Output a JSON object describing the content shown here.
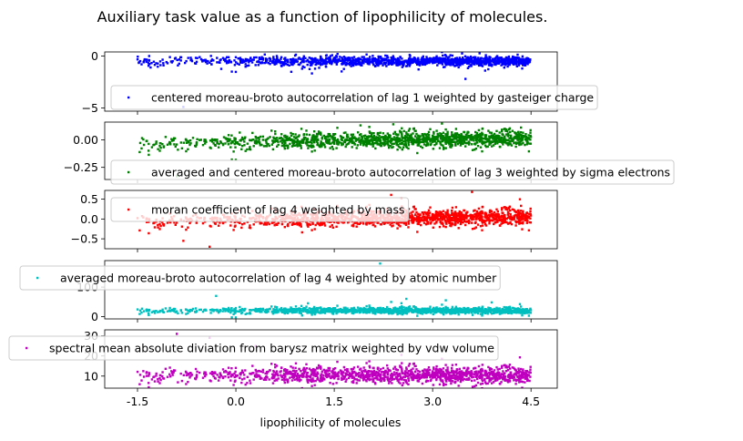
{
  "chart_data": {
    "type": "scatter",
    "title": "Auxiliary task value as a function of lipophilicity of molecules.",
    "xlabel": "lipophilicity of molecules",
    "xlim": [
      -2.0,
      4.9
    ],
    "xticks": [
      -1.5,
      0.0,
      1.5,
      3.0,
      4.5
    ],
    "xtick_labels": [
      "-1.5",
      "0.0",
      "1.5",
      "3.0",
      "4.5"
    ],
    "subplots": [
      {
        "series_name": "centered moreau-broto autocorrelation of lag 1 weighted by gasteiger charge",
        "color": "#0000ff",
        "ylim": [
          -5.3,
          0.4
        ],
        "yticks": [
          0,
          -5
        ],
        "ytick_labels": [
          "0",
          "−5"
        ],
        "center": -0.5,
        "spread": 0.22,
        "slope": 0.0,
        "outliers": [
          [
            -0.8,
            -4.9
          ],
          [
            3.5,
            -2.2
          ],
          [
            3.8,
            -1.4
          ],
          [
            -1.3,
            -1.1
          ]
        ],
        "legend_loc": "lower-left"
      },
      {
        "series_name": "averaged and centered moreau-broto autocorrelation of lag 3 weighted by sigma electrons",
        "color": "#008000",
        "ylim": [
          -0.36,
          0.16
        ],
        "yticks": [
          0.0,
          -0.25
        ],
        "ytick_labels": [
          "0.00",
          "−0.25"
        ],
        "center": -0.02,
        "spread": 0.035,
        "slope": 0.008,
        "outliers": [
          [
            1.9,
            0.13
          ],
          [
            2.4,
            0.14
          ],
          [
            -0.9,
            -0.33
          ],
          [
            3.1,
            -0.28
          ]
        ],
        "legend_loc": "lower-left"
      },
      {
        "series_name": "moran coefficient of lag 4 weighted by mass",
        "color": "#ff0000",
        "ylim": [
          -0.75,
          0.72
        ],
        "yticks": [
          0.5,
          0.0,
          -0.5
        ],
        "ytick_labels": [
          "0.5",
          "0.0",
          "−0.5"
        ],
        "center": -0.03,
        "spread": 0.1,
        "slope": 0.02,
        "outliers": [
          [
            3.6,
            0.68
          ],
          [
            -0.4,
            -0.7
          ],
          [
            -0.8,
            -0.55
          ]
        ],
        "legend_loc": "upper-left"
      },
      {
        "series_name": "averaged moreau-broto autocorrelation of lag 4 weighted by atomic number",
        "color": "#00bfbf",
        "ylim": [
          -8,
          190
        ],
        "yticks": [
          0,
          100
        ],
        "ytick_labels": [
          "0",
          "100"
        ],
        "center": 20,
        "spread": 5,
        "slope": 0.0,
        "outliers": [
          [
            2.2,
            180
          ],
          [
            2.6,
            60
          ],
          [
            3.2,
            55
          ],
          [
            -0.3,
            70
          ],
          [
            3.9,
            48
          ],
          [
            1.1,
            45
          ]
        ],
        "legend_loc": "upper-left"
      },
      {
        "series_name": "spectral mean absolute diviation from barysz matrix weighted by vdw volume",
        "color": "#bf00bf",
        "ylim": [
          4,
          33
        ],
        "yticks": [
          30,
          20,
          10
        ],
        "ytick_labels": [
          "30",
          "20",
          "10"
        ],
        "center": 10.5,
        "spread": 2.0,
        "slope": 0.0,
        "outliers": [
          [
            -0.9,
            31
          ],
          [
            -0.4,
            29
          ],
          [
            0.3,
            25
          ]
        ],
        "legend_loc": "upper-left"
      }
    ]
  }
}
